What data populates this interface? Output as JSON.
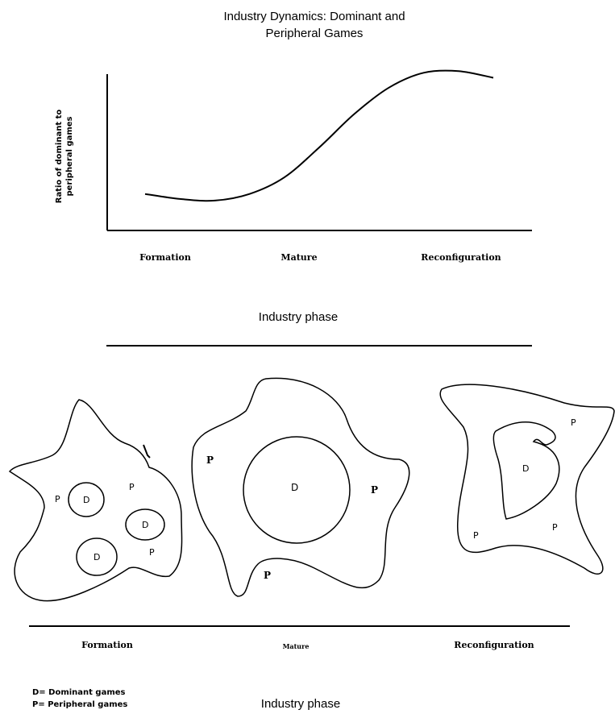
{
  "title": {
    "line1": "Industry Dynamics: Dominant and",
    "line2": "Peripheral  Games"
  },
  "top_chart": {
    "ylabel_line1": "Ratio of dominant to",
    "ylabel_line2": "peripheral games",
    "phases": [
      "Formation",
      "Mature",
      "Reconfiguration"
    ],
    "axis_title": "Industry phase"
  },
  "diagrams": {
    "phases": [
      "Formation",
      "Mature",
      "Reconfiguration"
    ],
    "axis_title": "Industry phase",
    "formation": {
      "labels": [
        "P",
        "D",
        "P",
        "D",
        "D",
        "P"
      ]
    },
    "mature": {
      "labels": [
        "P",
        "D",
        "P",
        "P"
      ]
    },
    "reconfiguration": {
      "labels": [
        "P",
        "D",
        "P",
        "P"
      ]
    }
  },
  "legend": {
    "d_line": "D= Dominant games",
    "p_line": "P= Peripheral games"
  },
  "chart_data": {
    "type": "line",
    "title": "Industry Dynamics: Dominant and Peripheral Games",
    "xlabel": "Industry phase",
    "ylabel": "Ratio of dominant to peripheral games",
    "categories": [
      "Formation",
      "Mature",
      "Reconfiguration"
    ],
    "x": [
      0,
      0.1,
      0.2,
      0.3,
      0.4,
      0.5,
      0.6,
      0.7,
      0.8,
      0.9,
      1.0
    ],
    "y": [
      0.22,
      0.19,
      0.18,
      0.22,
      0.32,
      0.5,
      0.7,
      0.86,
      0.95,
      0.96,
      0.92
    ]
  }
}
